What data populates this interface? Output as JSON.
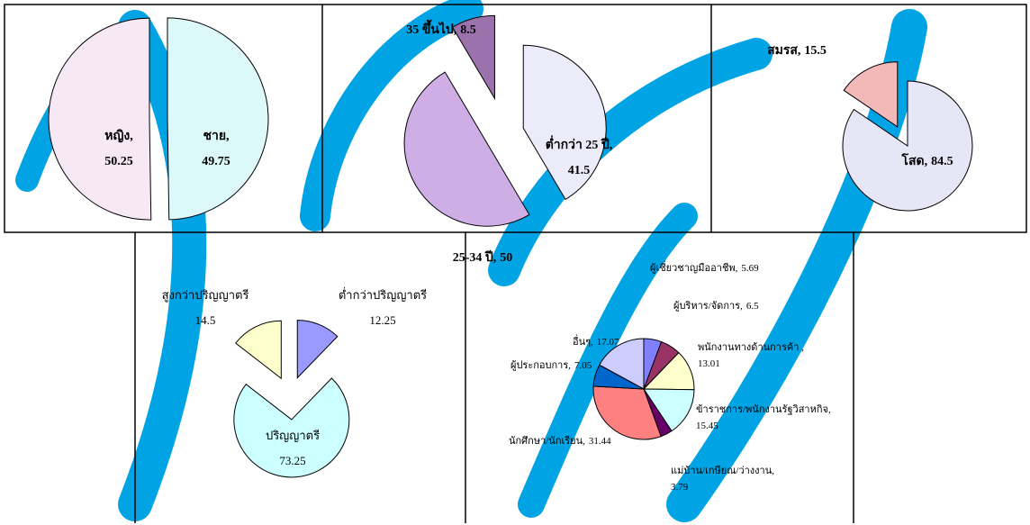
{
  "chart_data": [
    {
      "type": "pie",
      "categories": [
        "ชาย,",
        "หญิง,"
      ],
      "values": [
        49.75,
        50.25
      ],
      "colors": [
        "#dcf8f8",
        "#f6e8f4"
      ]
    },
    {
      "type": "pie",
      "categories": [
        "ต่ำกว่า 25 ปี,",
        "25-34 ปี,",
        "35 ขึ้นไป,"
      ],
      "values": [
        41.5,
        50,
        8.5
      ],
      "colors": [
        "#ecebfa",
        "#cfaee6",
        "#9c72ad"
      ]
    },
    {
      "type": "pie",
      "categories": [
        "โสด,",
        "สมรส,"
      ],
      "values": [
        84.5,
        15.5
      ],
      "colors": [
        "#e6e6f6",
        "#f3b8b8"
      ]
    },
    {
      "type": "pie",
      "categories": [
        "ต่ำกว่าปริญญาตรี",
        "ปริญญาตรี",
        "สูงกว่าปริญญาตรี"
      ],
      "values": [
        12.25,
        73.25,
        14.5
      ],
      "colors": [
        "#9999ff",
        "#ccffff",
        "#ffffcc"
      ]
    },
    {
      "type": "pie",
      "categories": [
        "ผู้เชี่ยวชาญมืออาชีพ,",
        "ผู้บริหาร/จัดการ,",
        "พนักงานทางด้านการค้า ,",
        "ข้าราชการ/พนักงานรัฐวิสาหกิจ,",
        "แม่บ้าน/เกษียณ/ว่างงาน,",
        "นักศึกษา/นักเรียน,",
        "ผู้ประกอบการ,",
        "อื่นๆ,"
      ],
      "values": [
        5.69,
        6.5,
        13.01,
        15.45,
        3.79,
        31.44,
        7.05,
        17.07
      ],
      "colors": [
        "#8080ff",
        "#993366",
        "#ffffcc",
        "#ccffff",
        "#660066",
        "#ff8080",
        "#0066cc",
        "#ccccff"
      ]
    }
  ]
}
